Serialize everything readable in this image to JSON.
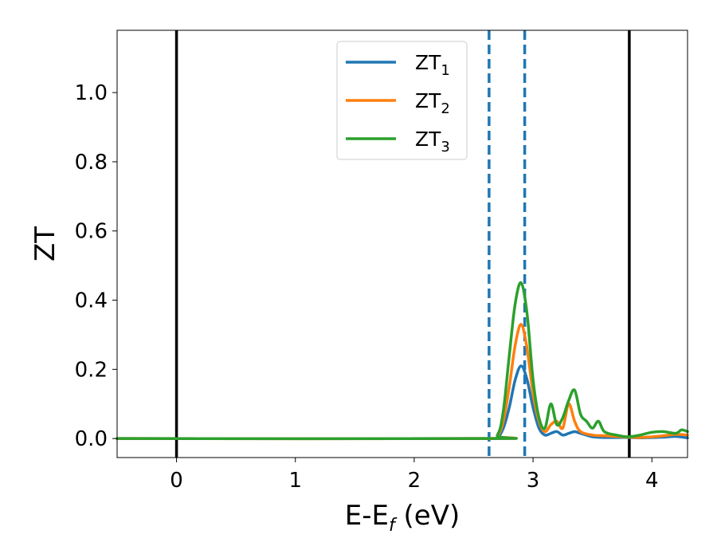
{
  "chart_data": {
    "type": "line",
    "title": "",
    "xlabel": {
      "base": "E-E",
      "sub": "f",
      "rest": " (eV)"
    },
    "ylabel": "ZT",
    "xlim": [
      -0.5,
      4.3
    ],
    "ylim": [
      -0.055,
      1.18
    ],
    "xticks": [
      0,
      1,
      2,
      3,
      4
    ],
    "xtick_labels": [
      "0",
      "1",
      "2",
      "3",
      "4"
    ],
    "yticks": [
      0.0,
      0.2,
      0.4,
      0.6,
      0.8,
      1.0
    ],
    "ytick_labels": [
      "0.0",
      "0.2",
      "0.4",
      "0.6",
      "0.8",
      "1.0"
    ],
    "grid": false,
    "legend_position": "top-center",
    "vertical_lines": [
      {
        "x": 0.0,
        "style": "solid",
        "color": "#000000"
      },
      {
        "x": 3.81,
        "style": "solid",
        "color": "#000000"
      },
      {
        "x": 2.63,
        "style": "dashed",
        "color": "#1f77b4"
      },
      {
        "x": 2.93,
        "style": "dashed",
        "color": "#1f77b4"
      }
    ],
    "series": [
      {
        "name": {
          "base": "ZT",
          "sub": "1"
        },
        "color": "#1f77b4",
        "x": [
          -0.5,
          2.6,
          2.7,
          2.75,
          2.8,
          2.85,
          2.9,
          2.95,
          3.0,
          3.05,
          3.1,
          3.15,
          3.2,
          3.25,
          3.3,
          3.35,
          3.4,
          3.5,
          3.6,
          3.7,
          3.8,
          3.9,
          4.0,
          4.1,
          4.2,
          4.3
        ],
        "y": [
          0.0,
          0.0,
          0.005,
          0.03,
          0.09,
          0.17,
          0.21,
          0.17,
          0.09,
          0.03,
          0.01,
          0.015,
          0.02,
          0.01,
          0.015,
          0.02,
          0.015,
          0.005,
          0.003,
          0.003,
          0.003,
          0.002,
          0.003,
          0.004,
          0.006,
          0.002
        ]
      },
      {
        "name": {
          "base": "ZT",
          "sub": "2"
        },
        "color": "#ff7f0e",
        "x": [
          -0.5,
          2.6,
          2.7,
          2.75,
          2.8,
          2.85,
          2.9,
          2.95,
          3.0,
          3.05,
          3.1,
          3.15,
          3.2,
          3.25,
          3.3,
          3.35,
          3.4,
          3.5,
          3.6,
          3.7,
          3.8,
          3.9,
          4.0,
          4.1,
          4.2,
          4.3
        ],
        "y": [
          0.0,
          0.0,
          0.008,
          0.05,
          0.15,
          0.27,
          0.33,
          0.26,
          0.13,
          0.05,
          0.02,
          0.04,
          0.05,
          0.03,
          0.1,
          0.05,
          0.02,
          0.01,
          0.008,
          0.006,
          0.004,
          0.003,
          0.005,
          0.008,
          0.012,
          0.01
        ]
      },
      {
        "name": {
          "base": "ZT",
          "sub": "3"
        },
        "color": "#2ca02c",
        "x": [
          -0.5,
          2.6,
          2.7,
          2.75,
          2.8,
          2.85,
          2.9,
          2.95,
          3.0,
          3.05,
          3.1,
          3.15,
          3.2,
          3.25,
          3.3,
          3.35,
          3.4,
          3.45,
          3.5,
          3.55,
          3.6,
          3.7,
          3.8,
          3.9,
          4.0,
          4.1,
          4.2,
          4.25,
          4.3
        ],
        "y": [
          0.0,
          0.0,
          0.01,
          0.08,
          0.24,
          0.39,
          0.45,
          0.36,
          0.17,
          0.06,
          0.03,
          0.1,
          0.04,
          0.06,
          0.11,
          0.14,
          0.07,
          0.05,
          0.03,
          0.05,
          0.02,
          0.01,
          0.005,
          0.01,
          0.018,
          0.02,
          0.015,
          0.025,
          0.02
        ]
      }
    ]
  }
}
